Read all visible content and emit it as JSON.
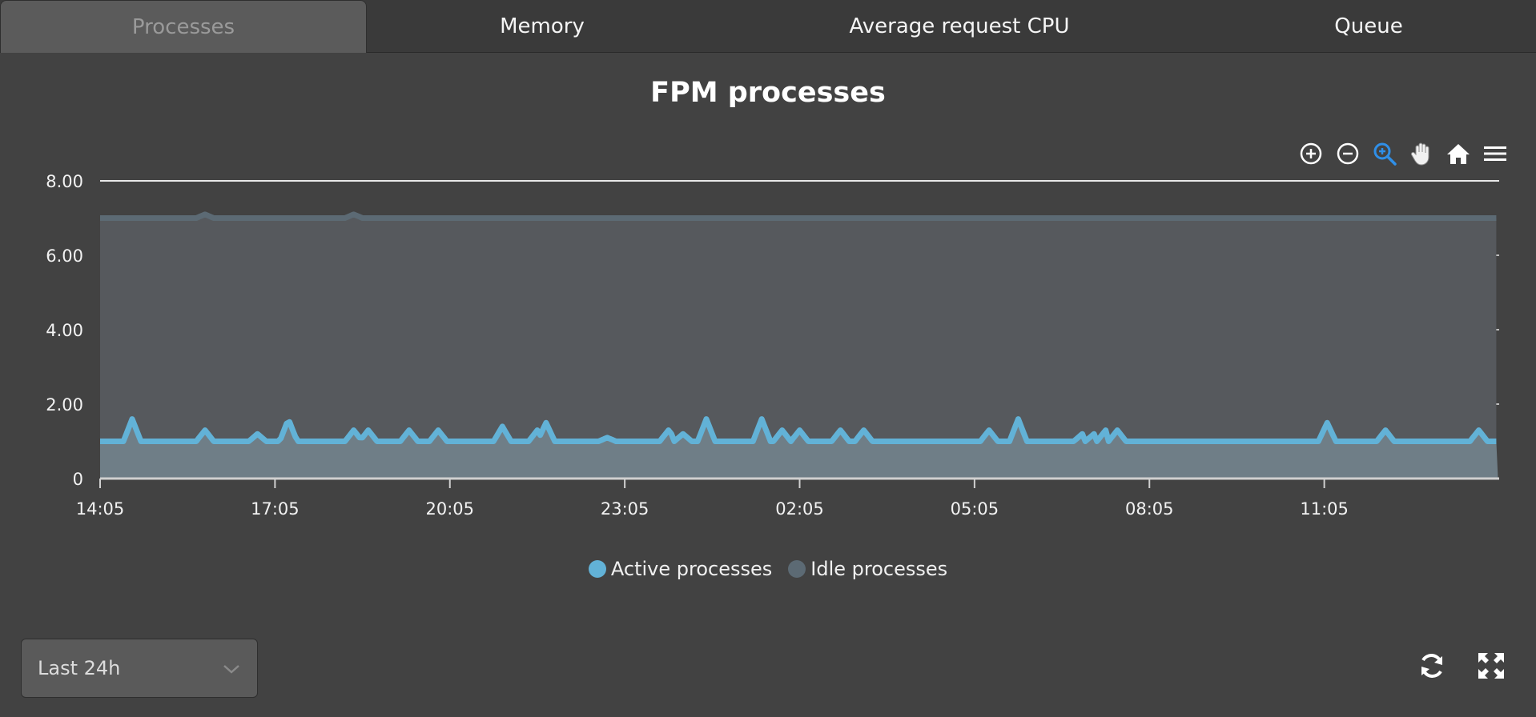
{
  "tabs": [
    {
      "label": "Processes",
      "active": true
    },
    {
      "label": "Memory",
      "active": false
    },
    {
      "label": "Average request CPU",
      "active": false
    },
    {
      "label": "Queue",
      "active": false
    }
  ],
  "toolbar": {
    "icons": [
      "zoom-in-icon",
      "zoom-out-icon",
      "selection-zoom-icon",
      "pan-hand-icon",
      "home-reset-icon",
      "menu-icon"
    ],
    "active_icon_color": "#2f8fe8"
  },
  "range_selector": {
    "value": "Last 24h"
  },
  "bottom_actions": {
    "icons": [
      "refresh-icon",
      "fullscreen-icon"
    ]
  },
  "colors": {
    "active": "#62b2d7",
    "idle": "#5c6a74",
    "idle_fill": "#56595d",
    "active_fill": "#6f7e87"
  },
  "chart_data": {
    "type": "area",
    "stacked": true,
    "title": "FPM processes",
    "x_ticks": [
      "14:05",
      "17:05",
      "20:05",
      "23:05",
      "02:05",
      "05:05",
      "08:05",
      "11:05"
    ],
    "y_ticks": [
      "0",
      "2.00",
      "4.00",
      "6.00",
      "8.00"
    ],
    "ylim": [
      0,
      8
    ],
    "x_range_hours": [
      0,
      24
    ],
    "legend": "bottom-center",
    "grid": true,
    "series": [
      {
        "name": "Active processes",
        "color": "#62b2d7",
        "baseline": 1,
        "spikes": [
          {
            "t": 0.55,
            "v": 1.6
          },
          {
            "t": 1.8,
            "v": 1.3
          },
          {
            "t": 2.7,
            "v": 1.2
          },
          {
            "t": 3.23,
            "v": 1.6
          },
          {
            "t": 4.35,
            "v": 1.3
          },
          {
            "t": 4.6,
            "v": 1.3
          },
          {
            "t": 5.3,
            "v": 1.3
          },
          {
            "t": 5.8,
            "v": 1.3
          },
          {
            "t": 6.9,
            "v": 1.4
          },
          {
            "t": 7.5,
            "v": 1.3
          },
          {
            "t": 7.65,
            "v": 1.5
          },
          {
            "t": 8.7,
            "v": 1.1
          },
          {
            "t": 9.75,
            "v": 1.3
          },
          {
            "t": 10.0,
            "v": 1.2
          },
          {
            "t": 10.4,
            "v": 1.6
          },
          {
            "t": 11.35,
            "v": 1.6
          },
          {
            "t": 11.7,
            "v": 1.3
          },
          {
            "t": 12.0,
            "v": 1.3
          },
          {
            "t": 12.7,
            "v": 1.3
          },
          {
            "t": 13.1,
            "v": 1.3
          },
          {
            "t": 15.25,
            "v": 1.3
          },
          {
            "t": 15.75,
            "v": 1.6
          },
          {
            "t": 16.85,
            "v": 1.2
          },
          {
            "t": 17.05,
            "v": 1.2
          },
          {
            "t": 17.25,
            "v": 1.3
          },
          {
            "t": 17.45,
            "v": 1.3
          },
          {
            "t": 21.05,
            "v": 1.5
          },
          {
            "t": 22.05,
            "v": 1.3
          },
          {
            "t": 23.65,
            "v": 1.3
          }
        ]
      },
      {
        "name": "Idle processes",
        "color": "#5c6a74",
        "baseline": 6,
        "dips": [
          {
            "t": 0.55,
            "v": 5.4
          },
          {
            "t": 1.8,
            "v": 5.8
          },
          {
            "t": 2.7,
            "v": 5.8
          },
          {
            "t": 3.23,
            "v": 5.4
          },
          {
            "t": 4.35,
            "v": 5.8
          },
          {
            "t": 4.6,
            "v": 5.7
          },
          {
            "t": 5.3,
            "v": 5.7
          },
          {
            "t": 5.8,
            "v": 5.7
          },
          {
            "t": 6.9,
            "v": 5.6
          },
          {
            "t": 7.5,
            "v": 5.7
          },
          {
            "t": 7.65,
            "v": 5.5
          },
          {
            "t": 8.7,
            "v": 5.9
          },
          {
            "t": 9.75,
            "v": 5.7
          },
          {
            "t": 10.0,
            "v": 5.8
          },
          {
            "t": 10.4,
            "v": 5.4
          },
          {
            "t": 11.35,
            "v": 5.4
          },
          {
            "t": 11.7,
            "v": 5.7
          },
          {
            "t": 12.0,
            "v": 5.7
          },
          {
            "t": 12.7,
            "v": 5.7
          },
          {
            "t": 13.1,
            "v": 5.7
          },
          {
            "t": 15.25,
            "v": 5.7
          },
          {
            "t": 15.75,
            "v": 5.4
          },
          {
            "t": 16.85,
            "v": 5.8
          },
          {
            "t": 17.05,
            "v": 5.8
          },
          {
            "t": 17.25,
            "v": 5.7
          },
          {
            "t": 17.45,
            "v": 5.7
          },
          {
            "t": 21.05,
            "v": 5.5
          },
          {
            "t": 22.05,
            "v": 5.7
          },
          {
            "t": 23.65,
            "v": 5.7
          }
        ]
      }
    ]
  }
}
